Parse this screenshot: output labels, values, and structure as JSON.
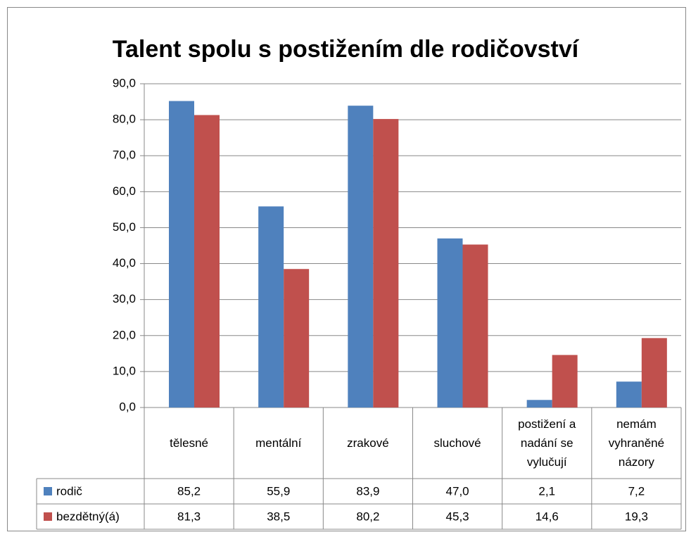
{
  "chart_data": {
    "type": "bar",
    "title": "Talent spolu s postižením dle rodičovství",
    "categories": [
      "tělesné",
      "mentální",
      "zrakové",
      "sluchové",
      "postižení a nadání se vylučují",
      "nemám vyhraněné názory"
    ],
    "series": [
      {
        "name": "rodič",
        "color": "#4f81bd",
        "values": [
          85.2,
          55.9,
          83.9,
          47.0,
          2.1,
          7.2
        ],
        "value_labels": [
          "85,2",
          "55,9",
          "83,9",
          "47,0",
          "2,1",
          "7,2"
        ]
      },
      {
        "name": "bezdětný(á)",
        "color": "#c0504d",
        "values": [
          81.3,
          38.5,
          80.2,
          45.3,
          14.6,
          19.3
        ],
        "value_labels": [
          "81,3",
          "38,5",
          "80,2",
          "45,3",
          "14,6",
          "19,3"
        ]
      }
    ],
    "ylim": [
      0,
      90
    ],
    "yticks": [
      {
        "value": 0,
        "label": "0,0"
      },
      {
        "value": 10,
        "label": "10,0"
      },
      {
        "value": 20,
        "label": "20,0"
      },
      {
        "value": 30,
        "label": "30,0"
      },
      {
        "value": 40,
        "label": "40,0"
      },
      {
        "value": 50,
        "label": "50,0"
      },
      {
        "value": 60,
        "label": "60,0"
      },
      {
        "value": 70,
        "label": "70,0"
      },
      {
        "value": 80,
        "label": "80,0"
      },
      {
        "value": 90,
        "label": "90,0"
      }
    ],
    "grid": true
  }
}
